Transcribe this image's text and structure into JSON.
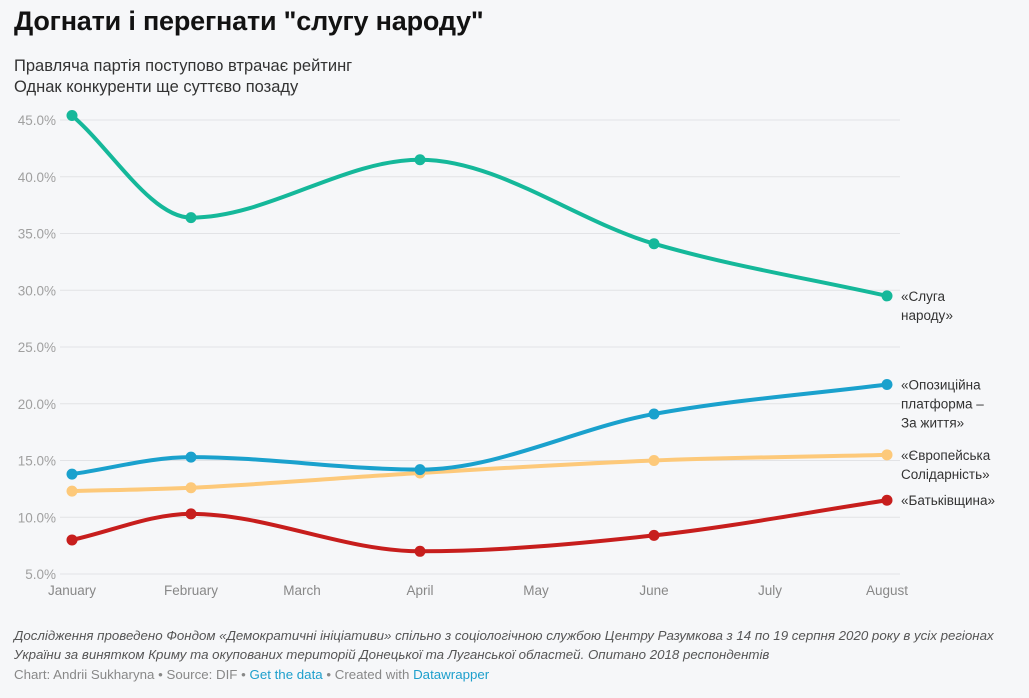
{
  "title": "Догнати і перегнати \"слугу народу\"",
  "subtitle": [
    "Правляча партія поступово втрачає рейтинг",
    "Однак конкуренти ще суттєво позаду"
  ],
  "notes": "Дослідження проведено Фондом «Демократичні ініціативи» спільно з соціологічною службою Центру Разумкова з 14 по 19 серпня 2020 року в усіх регіонах України за винятком Криму та окупованих територій Донецької та Луганської областей. Опитано 2018 респондентів",
  "footer": {
    "chart_by": "Chart: Andrii Sukharyna",
    "source": "Source: DIF",
    "get_data": "Get the data",
    "created_with": "Created with",
    "datawrapper": "Datawrapper",
    "sep": " • "
  },
  "chart_data": {
    "type": "line",
    "title": "Догнати і перегнати \"слугу народу\"",
    "xlabel": "",
    "ylabel": "",
    "x_ticks": [
      "January",
      "February",
      "March",
      "April",
      "May",
      "June",
      "July",
      "August"
    ],
    "x": [
      "January",
      "February",
      "April",
      "June",
      "August"
    ],
    "ylim": [
      5,
      45
    ],
    "y_ticks": [
      "5.0%",
      "10.0%",
      "15.0%",
      "20.0%",
      "25.0%",
      "30.0%",
      "35.0%",
      "40.0%",
      "45.0%"
    ],
    "grid": true,
    "legend": "direct labels at right",
    "series": [
      {
        "name": "«Слуга народу»",
        "label_lines": [
          "«Слуга",
          "народу»"
        ],
        "color": "#15b89a",
        "values": [
          45.4,
          36.4,
          41.5,
          34.1,
          29.5
        ]
      },
      {
        "name": "«Опозиційна платформа – За життя»",
        "label_lines": [
          "«Опозиційна",
          "платформа –",
          "За життя»"
        ],
        "color": "#1aa1cd",
        "values": [
          13.8,
          15.3,
          14.2,
          19.1,
          21.7
        ]
      },
      {
        "name": "«Європейська Солідарність»",
        "label_lines": [
          "«Європейська",
          "Солідарність»"
        ],
        "color": "#fdc97a",
        "values": [
          12.3,
          12.6,
          13.9,
          15.0,
          15.5
        ]
      },
      {
        "name": "«Батьківщина»",
        "label_lines": [
          "«Батьківщина»"
        ],
        "color": "#c71e1d",
        "values": [
          8.0,
          10.3,
          7.0,
          8.4,
          11.5
        ]
      }
    ]
  }
}
